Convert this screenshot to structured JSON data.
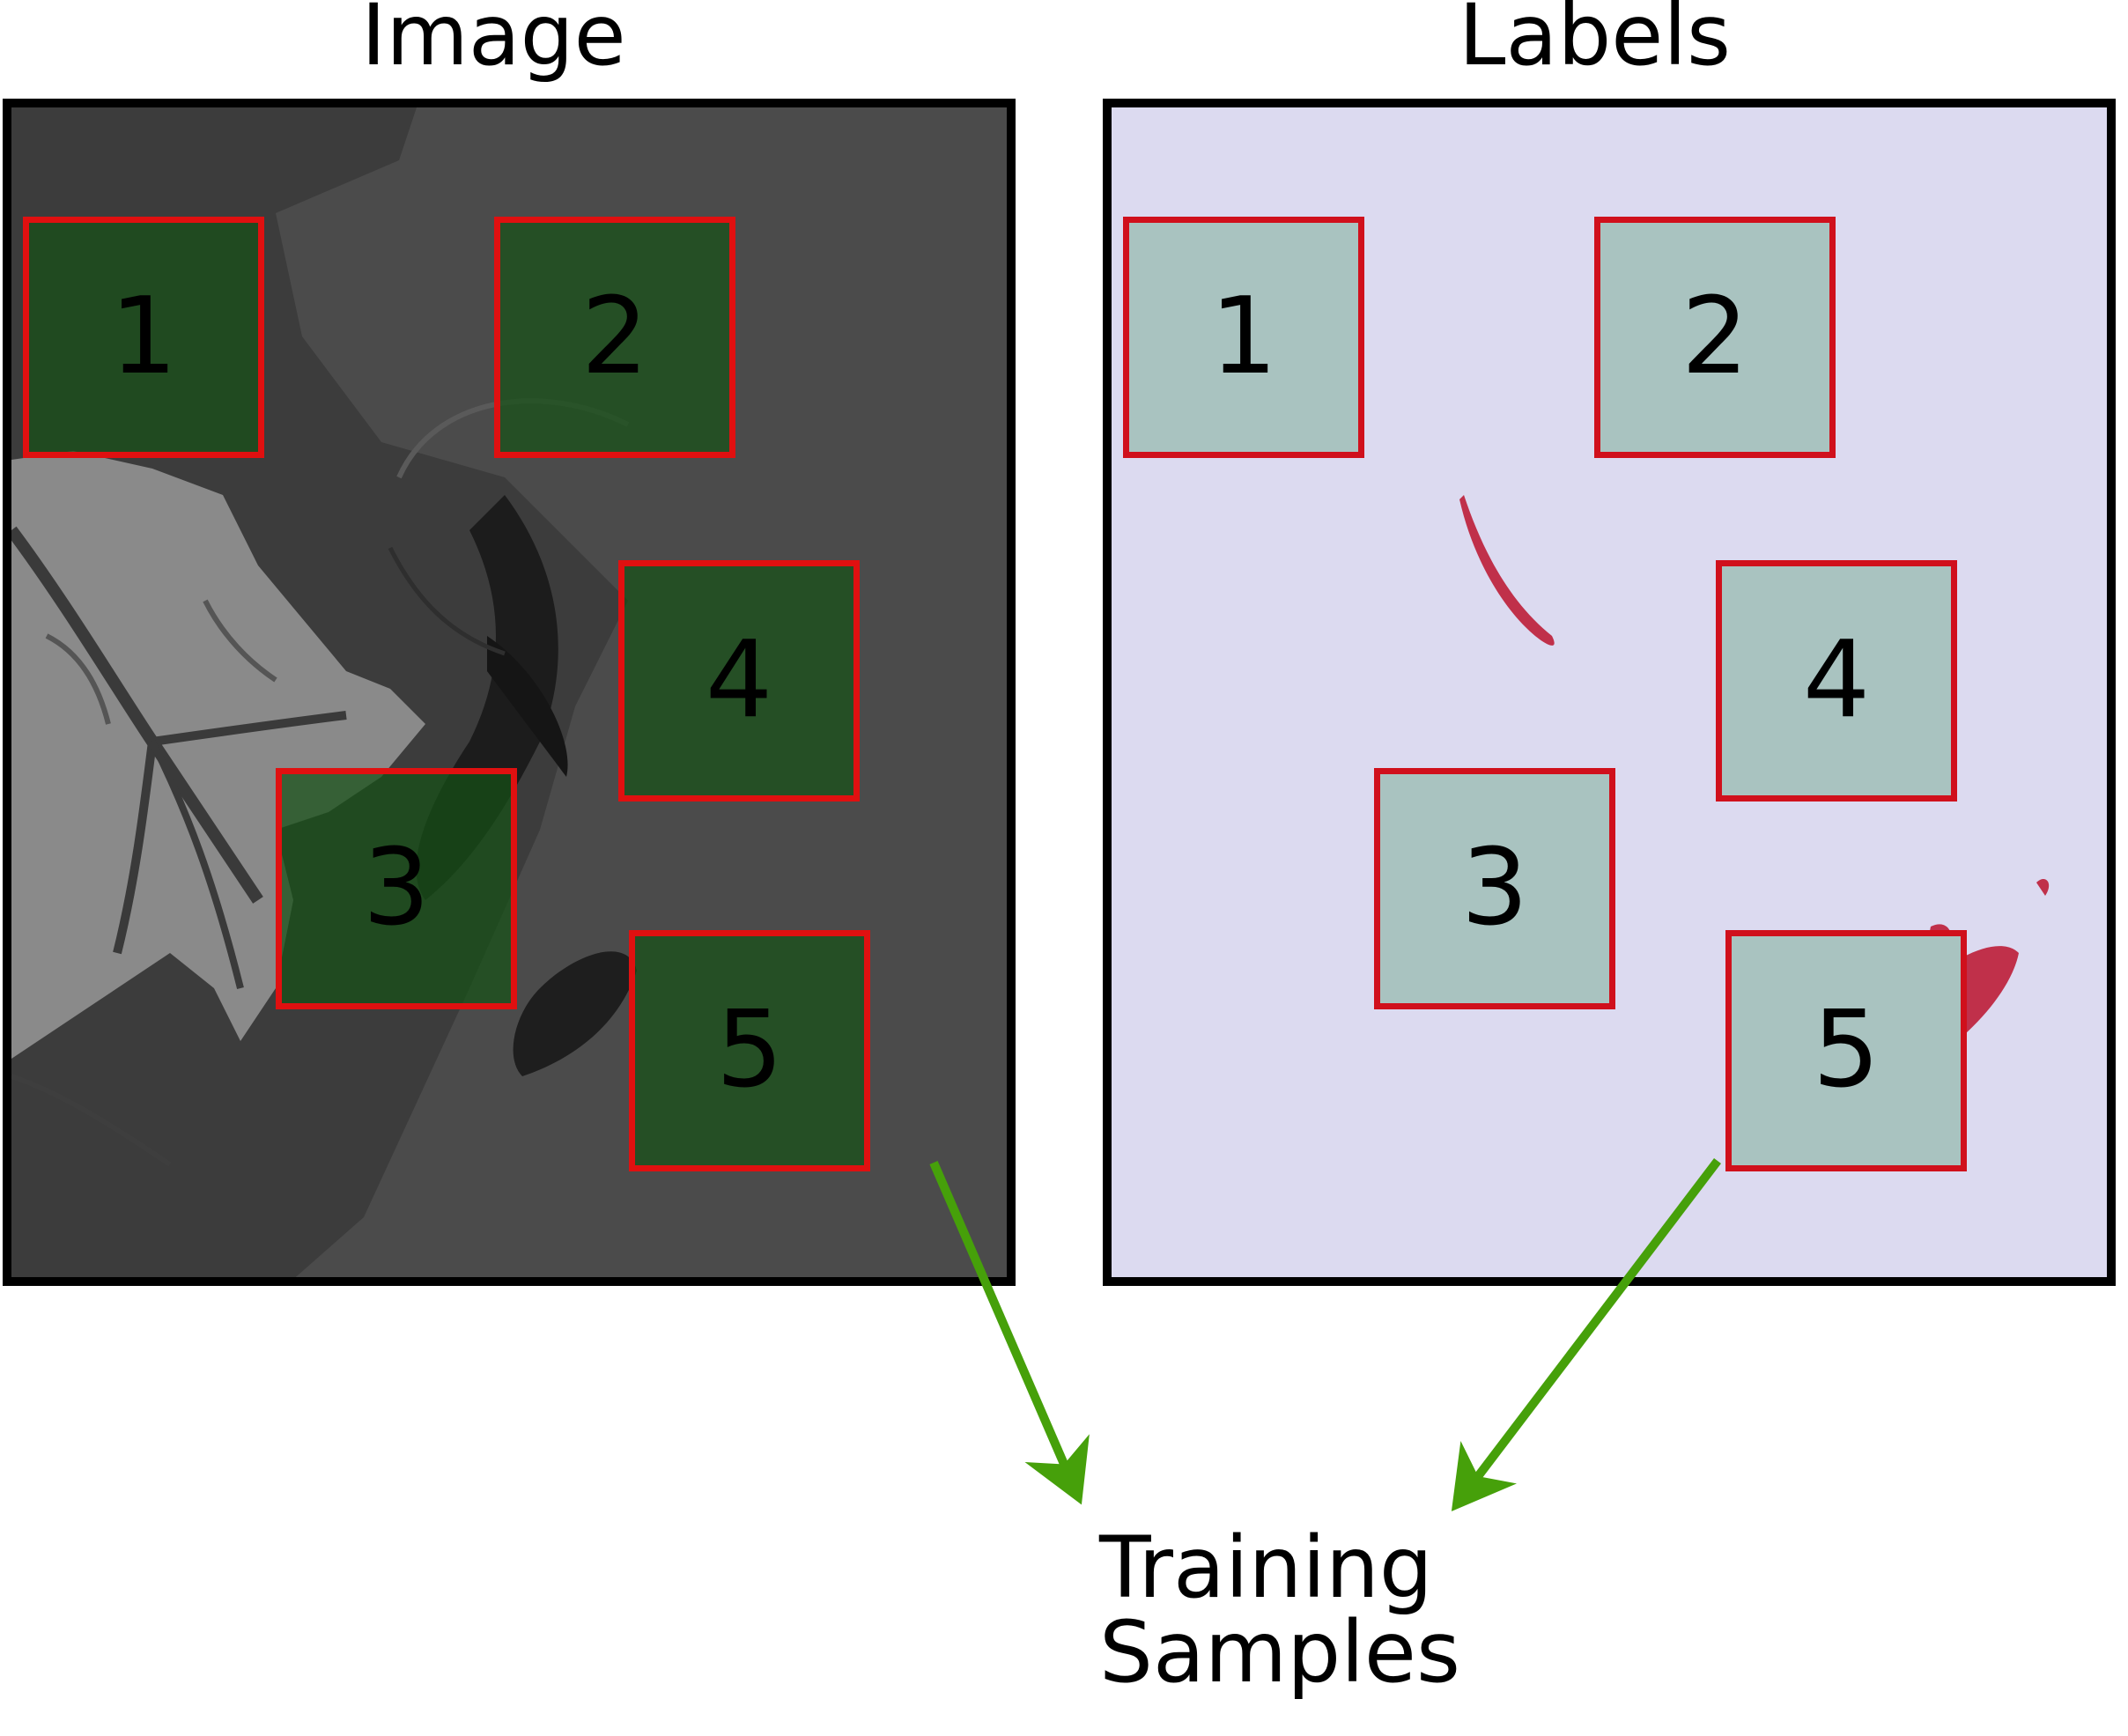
{
  "panels": {
    "image": {
      "title": "Image"
    },
    "labels": {
      "title": "Labels"
    }
  },
  "boxes": [
    "1",
    "2",
    "3",
    "4",
    "5"
  ],
  "caption": {
    "line1": "Training",
    "line2": "Samples"
  },
  "colors": {
    "box_border": "#e01010",
    "image_box_fill": "#165016",
    "labels_background": "#dcdaf0",
    "labels_box_fill": "#a9c3c0",
    "oil_slick": "#c0304a",
    "arrow": "#46a00a"
  }
}
